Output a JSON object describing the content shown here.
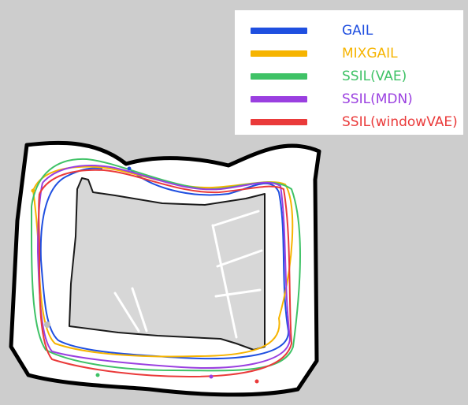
{
  "legend": {
    "items": [
      {
        "label": "GAIL",
        "color": "#1f4fe0"
      },
      {
        "label": "MIXGAIL",
        "color": "#f6b400"
      },
      {
        "label": "SSIL(VAE)",
        "color": "#3fc266"
      },
      {
        "label": "SSIL(MDN)",
        "color": "#9a3fe0"
      },
      {
        "label": "SSIL(windowVAE)",
        "color": "#ea3a3a"
      }
    ]
  },
  "map": {
    "background_color": "#cdcdcd",
    "free_space_color": "#ffffff",
    "wall_color": "#000000",
    "obstacle_color": "#d7d7d7"
  }
}
